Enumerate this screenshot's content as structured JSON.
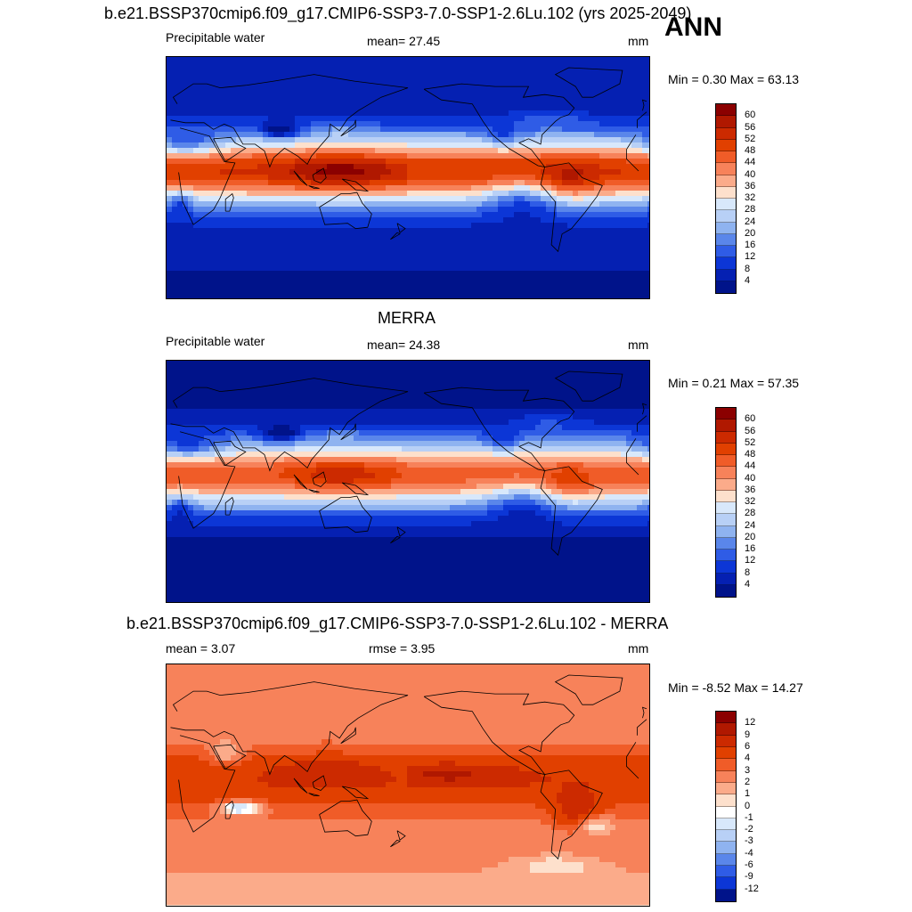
{
  "header": {
    "title": "b.e21.BSSP370cmip6.f09_g17.CMIP6-SSP3-7.0-SSP1-2.6Lu.102 (yrs 2025-2049)",
    "season": "ANN"
  },
  "panels": [
    {
      "title": "",
      "left_label": "Precipitable water",
      "center_label": "mean=  27.45",
      "units": "mm",
      "minmax": "Min =   0.30 Max =  63.13",
      "field": "model"
    },
    {
      "title": "MERRA",
      "left_label": "Precipitable water",
      "center_label": "mean=  24.38",
      "units": "mm",
      "minmax": "Min =   0.21 Max =  57.35",
      "field": "obs"
    },
    {
      "title": "b.e21.BSSP370cmip6.f09_g17.CMIP6-SSP3-7.0-SSP1-2.6Lu.102 - MERRA",
      "left_label": "mean =   3.07",
      "center_label": "rmse =   3.95",
      "units": "mm",
      "minmax": "Min =  -8.52 Max =  14.27",
      "field": "diff"
    }
  ],
  "colorbars": {
    "abs": {
      "labels": [
        "60",
        "56",
        "52",
        "48",
        "44",
        "40",
        "36",
        "32",
        "28",
        "24",
        "20",
        "16",
        "12",
        "8",
        "4"
      ],
      "colors": [
        "#8b0000",
        "#b01800",
        "#cc2a00",
        "#e14000",
        "#f05c28",
        "#f7825a",
        "#fbab8a",
        "#fde0cc",
        "#d8e8fb",
        "#b8d0f6",
        "#8fb3f0",
        "#5a86ea",
        "#2f5ce6",
        "#0c36d6",
        "#0520b2",
        "#00138a"
      ]
    },
    "diff": {
      "labels": [
        "12",
        "9",
        "6",
        "4",
        "3",
        "2",
        "1",
        "0",
        "-1",
        "-2",
        "-3",
        "-4",
        "-6",
        "-9",
        "-12"
      ],
      "colors": [
        "#8b0000",
        "#b01800",
        "#cc2a00",
        "#e14000",
        "#f05c28",
        "#f7825a",
        "#fbab8a",
        "#fde0cc",
        "#ffffff",
        "#d8e8fb",
        "#b8d0f6",
        "#8fb3f0",
        "#5a86ea",
        "#2f5ce6",
        "#0c36d6",
        "#00138a"
      ]
    }
  }
}
